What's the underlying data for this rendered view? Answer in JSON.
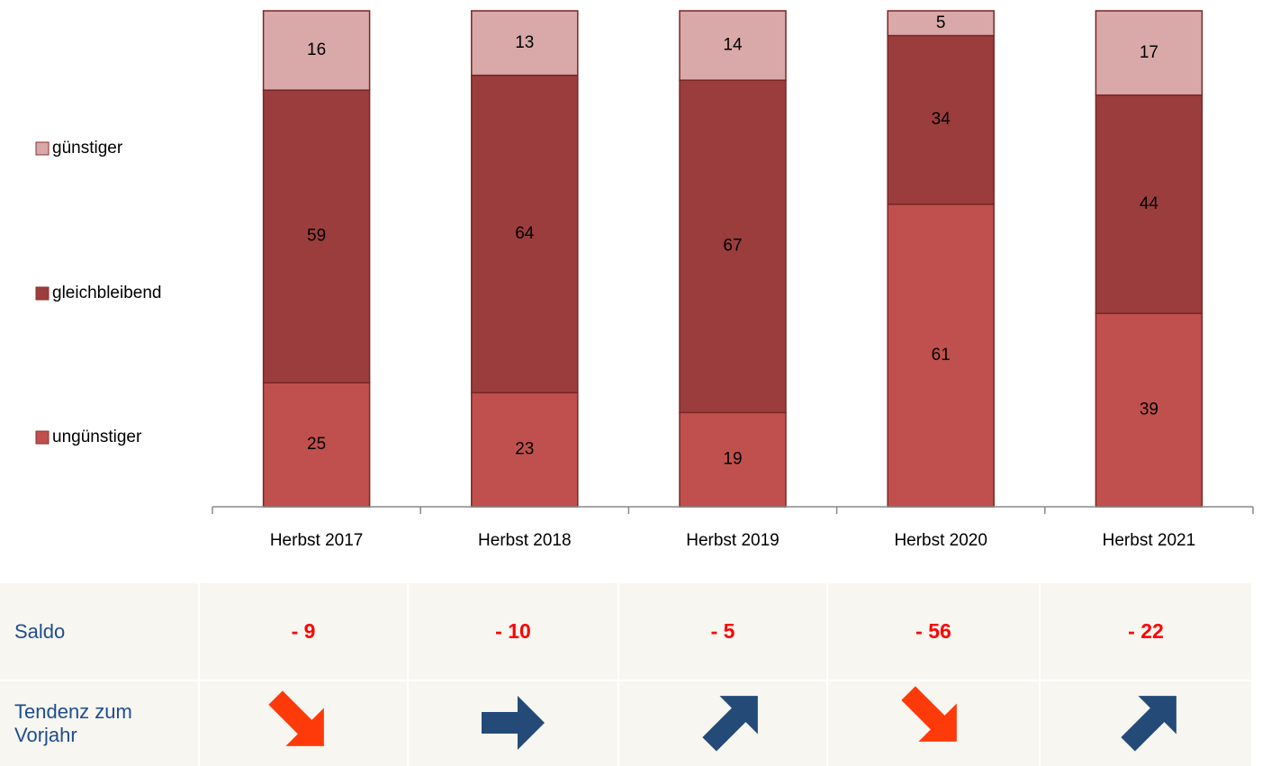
{
  "chart_data": {
    "type": "stacked-bar",
    "categories": [
      "Herbst 2017",
      "Herbst 2018",
      "Herbst 2019",
      "Herbst 2020",
      "Herbst 2021"
    ],
    "series": [
      {
        "name": "ungünstiger",
        "color": "#c0504d",
        "values": [
          25,
          23,
          19,
          61,
          39
        ]
      },
      {
        "name": "gleichbleibend",
        "color": "#9b3d3d",
        "values": [
          59,
          64,
          67,
          34,
          44
        ]
      },
      {
        "name": "günstiger",
        "color": "#d9a9a9",
        "values": [
          16,
          13,
          14,
          5,
          17
        ]
      }
    ],
    "ylim": [
      0,
      100
    ]
  },
  "table": {
    "rows": [
      [
        "Saldo",
        "- 9",
        "- 10",
        "- 5",
        "- 56",
        "- 22"
      ],
      [
        "Tendenz zum Vorjahr"
      ]
    ]
  }
}
